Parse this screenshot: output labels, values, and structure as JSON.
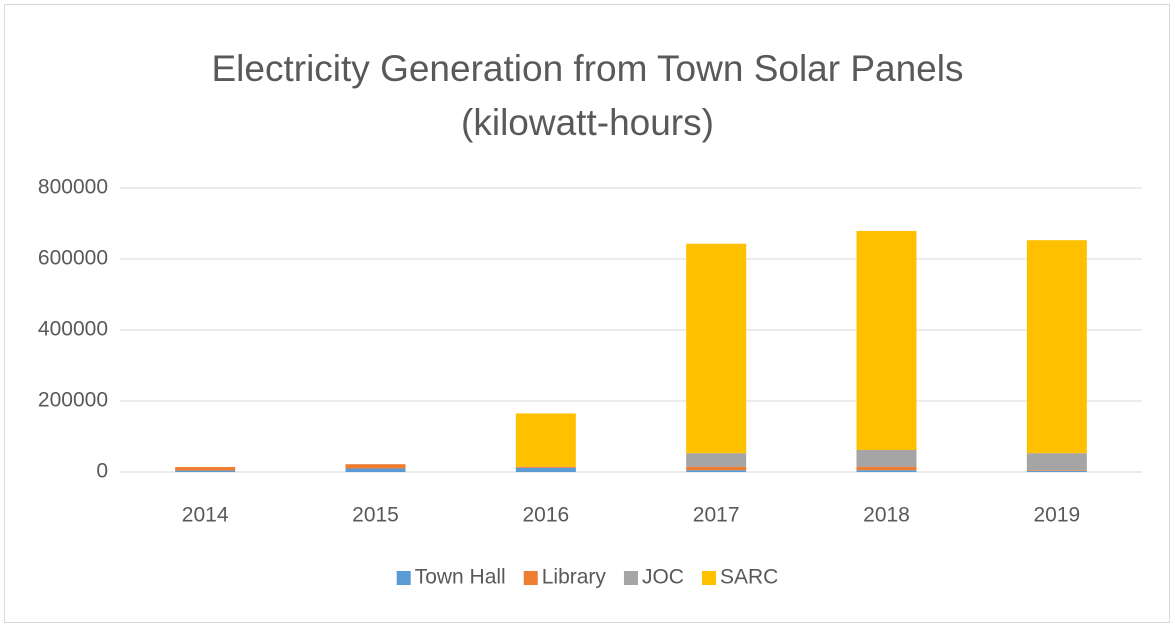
{
  "chart_data": {
    "type": "stacked_bar",
    "title": "Electricity Generation from Town Solar Panels (kilowatt-hours)",
    "categories": [
      "2014",
      "2015",
      "2016",
      "2017",
      "2018",
      "2019"
    ],
    "series": [
      {
        "name": "Town Hall",
        "color": "#5b9bd5",
        "values": [
          4000,
          10000,
          12000,
          5000,
          5000,
          3000
        ]
      },
      {
        "name": "Library",
        "color": "#ed7d31",
        "values": [
          10000,
          12000,
          3000,
          10000,
          10000,
          2000
        ]
      },
      {
        "name": "JOC",
        "color": "#a5a5a5",
        "values": [
          0,
          0,
          0,
          38000,
          47000,
          48000
        ]
      },
      {
        "name": "SARC",
        "color": "#ffc000",
        "values": [
          0,
          0,
          150000,
          590000,
          617000,
          600000
        ]
      }
    ],
    "ylim": [
      0,
      800000
    ],
    "yticks": [
      0,
      200000,
      400000,
      600000,
      800000
    ],
    "grid": true,
    "legend": "bottom"
  }
}
